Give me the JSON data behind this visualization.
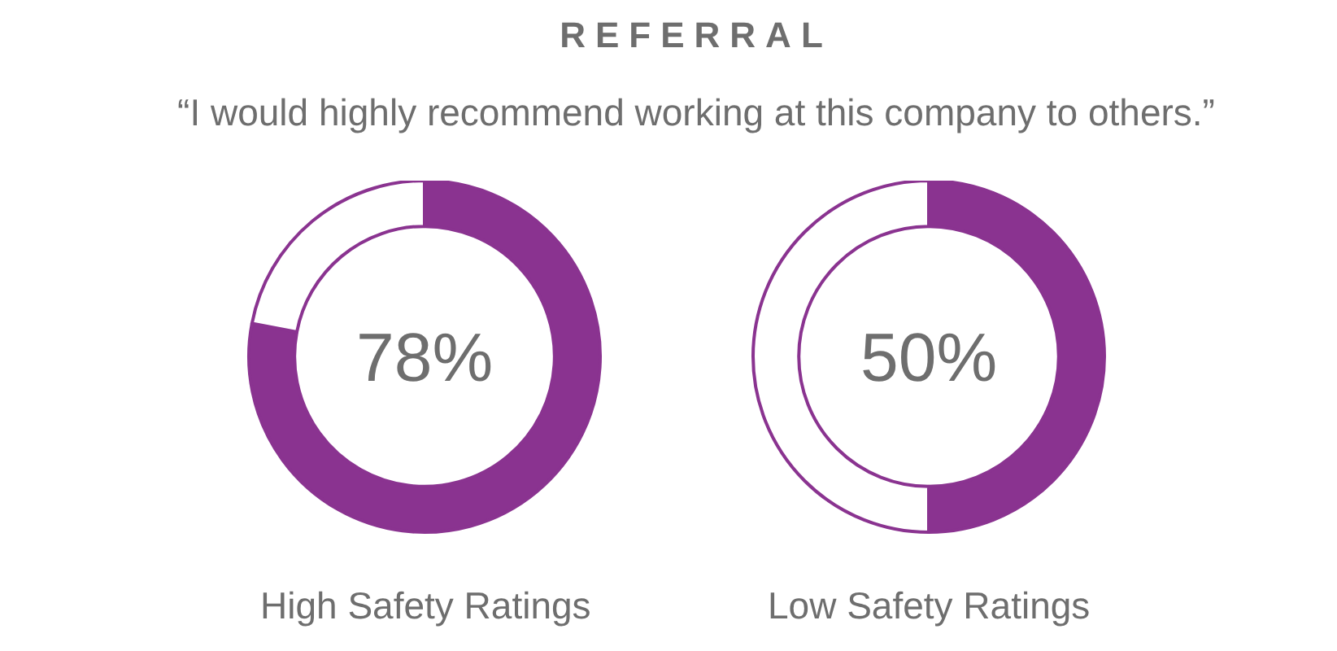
{
  "chart_data": [
    {
      "type": "donut",
      "title": "REFERRAL",
      "subtitle": "“I would highly recommend working at this company to others.”",
      "categories": [
        null,
        null
      ],
      "values": [
        78,
        22
      ],
      "colors": [
        "#8a3390",
        "#ffffff"
      ],
      "value_labels": [
        "78%",
        null
      ],
      "xlabel": "High Safety Ratings"
    },
    {
      "type": "donut",
      "categories": [
        null,
        null
      ],
      "values": [
        50,
        50
      ],
      "colors": [
        "#8a3390",
        "#ffffff"
      ],
      "value_labels": [
        "50%",
        null
      ],
      "xlabel": "Low Safety Ratings"
    }
  ]
}
